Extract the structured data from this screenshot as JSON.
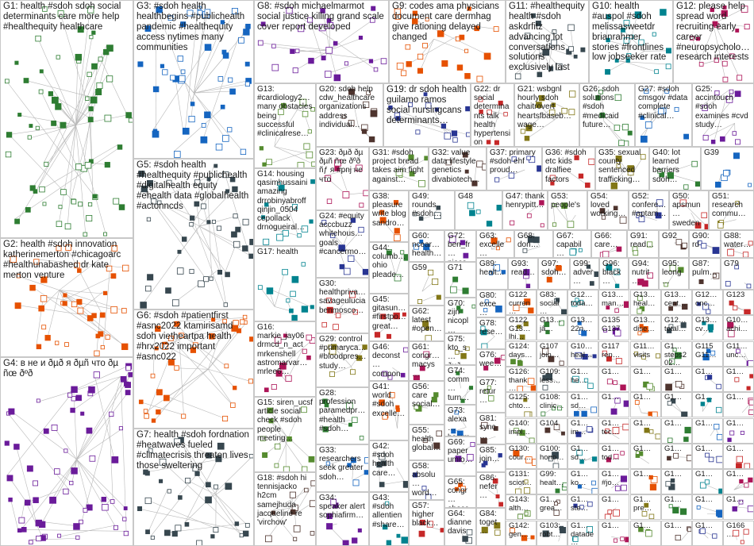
{
  "groups": [
    "G1: health #sdoh sdoh social determinants care more help #healthequity healthcare",
    "G3: #sdoh health healthbegins #publichealth pandemic #healthequity access nytimes many communities",
    "G8: #sdoh michaelmarmot social justice killing grand scale cover report developed",
    "G9: codes ama physicians document care dermhag give rationing delayed changed",
    "G11: #healthequity health #sdoh askdrfitz advancing lot conversations solutions exclusively last",
    "G10: health #auspol #sdoh melissasweetdr brianrahmer stories #frontlines low jobseeker rate",
    "G12: please help spread word recruiting early career #neuropsycholo… research interests",
    "G13: #cardiology2… many obstacles being successful #clinicalrese…",
    "G20: sdoh help cdw_healthcare organizations address individual…",
    "G19: dr sdoh health guilamo ramos social nursingcans determinants…",
    "G22: dr social determinants talk health hypertension asouth_neph…",
    "G21: wsbgnl hourly sdoh chaitrovert heartsfbaseb… wage…",
    "G26: sdoh solutions #sdoh #medicaid future…",
    "G27: #sdoh cmsgov #data complete #clinical…",
    "G25: accintouch #sdoh examines #cvd study…",
    "G2: health #sdoh innovation katherinemerton #chicagoarc #healthunabashed dr kate merton venture",
    "G5: #sdoh health #healthequity #publichealth #digitalhealth equity #ehealth data #globalhealth #actonncds",
    "G14: housing qasimhussaini amazing drrobinyabroff qinjin_0504 cepollack drnogueiral…",
    "G23: ðµð ðµ ðµñ ñœ ðºð ñƒ я #pnj не что",
    "G31: #sdoh project bread takes aim fight against…",
    "G32: value data lifestyle genetics divabiotech…",
    "G37: primary #sdoh ehf proud…",
    "G36: #sdoh etc kids dralfiee factors",
    "G35: sexual county sentenced trafficking…",
    "G40: lot learned barriers sdoh…",
    "G39",
    "G4: в не и ðµð я ðµñ что ðµ ñœ ðºð",
    "G6: #sdoh #patientfirst #asnc2022 ktamirisamd sdoh vietheartpa health #hrx2022 important #asnc022",
    "G7: health #sdoh fordnation #heatwaves fueled #climatecrisis threaten lives those sweltering",
    "G17: health",
    "G16: markie_jay06 drmcd_n_act mrkenshell astromarvar… mrlee6…",
    "G15: siren_ucsf article social check #sdoh people meeting…",
    "G18: #sdoh hi tennisjacko h2cm samejhuda jacqueline re 'virchow'",
    "G24: #equity acccbuzz whitehous… goals #cancermo…",
    "G30: healthpriva… savageulucia benmosco…",
    "G29: control #primaryca… #bloodpres… study…",
    "G28: profession paramedpr… #health #sdoh…",
    "G33: researchers seek greater sdoh…",
    "G34: speaker alert sophiafirm…",
    "G38: pleasure write blog sandro…",
    "G49: rounds #sdoh…",
    "G48",
    "G47: thank henrypitt…",
    "G53: people's",
    "G54: loved working…",
    "G52: confere… #aptam…",
    "G50: apsmun… sweden…",
    "G51: research commu…",
    "G44: columb… ohio pleade…",
    "G60: ncear… health…",
    "G72: ben_fr… piece…",
    "G63: excelle…",
    "G68: don…",
    "G67: capabil…",
    "G66: care…",
    "G91: read…",
    "G92",
    "G90: rd",
    "G88: water…",
    "G59",
    "G71",
    "G89: healt…",
    "G93: read…",
    "G97: sdoh…",
    "G99: adver…",
    "G96: black…",
    "G94: nutrit…",
    "G95: leong…",
    "G87: pulm…",
    "G79",
    "G45: gitasun… #firstpo… great…",
    "G62: latest #open…",
    "G70: zijn nicopl…",
    "G80: exce…",
    "G46: deconst… compon… social…",
    "G41: world #sdoh excelle…",
    "G42: #sdoh health care…",
    "G43: #sdoh allentien #share…",
    "G61: congr… macys…",
    "G56: care social…",
    "G55: health global…",
    "G58: absolu… word…",
    "G57: higher black…",
    "G75: kto_s… ðµð…",
    "G74: comm… turn…",
    "G73: alexa… hamm…",
    "G69: paper umio…",
    "G65: congr… ahocc…",
    "G64: dianne davis",
    "G78: rese…",
    "G76: wee…",
    "G77: retur…",
    "G81: sync…",
    "G85: join…",
    "G86: nefer…",
    "G84: toget…"
  ],
  "small_groups": [
    "G122 curren…",
    "G83: social…",
    "G12… toda…",
    "G13… man…",
    "G13… heal…",
    "G13… cent…",
    "G12… onc…",
    "G123",
    "G122 G13… lhi…",
    "G13… jâ…",
    "G13… 22n…",
    "G135 G137",
    "G13… dise…",
    "G12… total…",
    "G13… cv…",
    "G10… achi…",
    "G124: days…",
    "G107 join…",
    "G10… heal…",
    "G117 ren…",
    "G11… visits",
    "G1… steps202…",
    "G115 G11…",
    "G11… unc…",
    "G126: thank…",
    "G109: less…",
    "G1… he…",
    "G1…",
    "G1…",
    "G1…",
    "G1…",
    "G1…",
    "G125: chto…",
    "G108: clinic…",
    "G1… sd…",
    "G1…",
    "G1…",
    "G1…",
    "G1…",
    "G1…",
    "G140: impl…",
    "G104",
    "G1… im…",
    "G1… tec…",
    "G1…",
    "G1…",
    "G1…",
    "G1…",
    "G130: cour…",
    "G100: hono…",
    "G1… sd…",
    "G1… tod…",
    "G1…",
    "G1…",
    "G1…",
    "G1…",
    "G131: sciot…",
    "G99: healt…",
    "G1… ko…",
    "G1… #jo…",
    "G1…",
    "G1…",
    "G1…",
    "G1…",
    "G143: alth…",
    "G1… grea…",
    "G1… ste…",
    "G1…",
    "G1… pre…",
    "G1…",
    "G1…",
    "G1…",
    "G142: gen…",
    "G103: robt…",
    "G1… datade…",
    "G1…",
    "G1…",
    "G1…",
    "G1…",
    "G166…"
  ]
}
